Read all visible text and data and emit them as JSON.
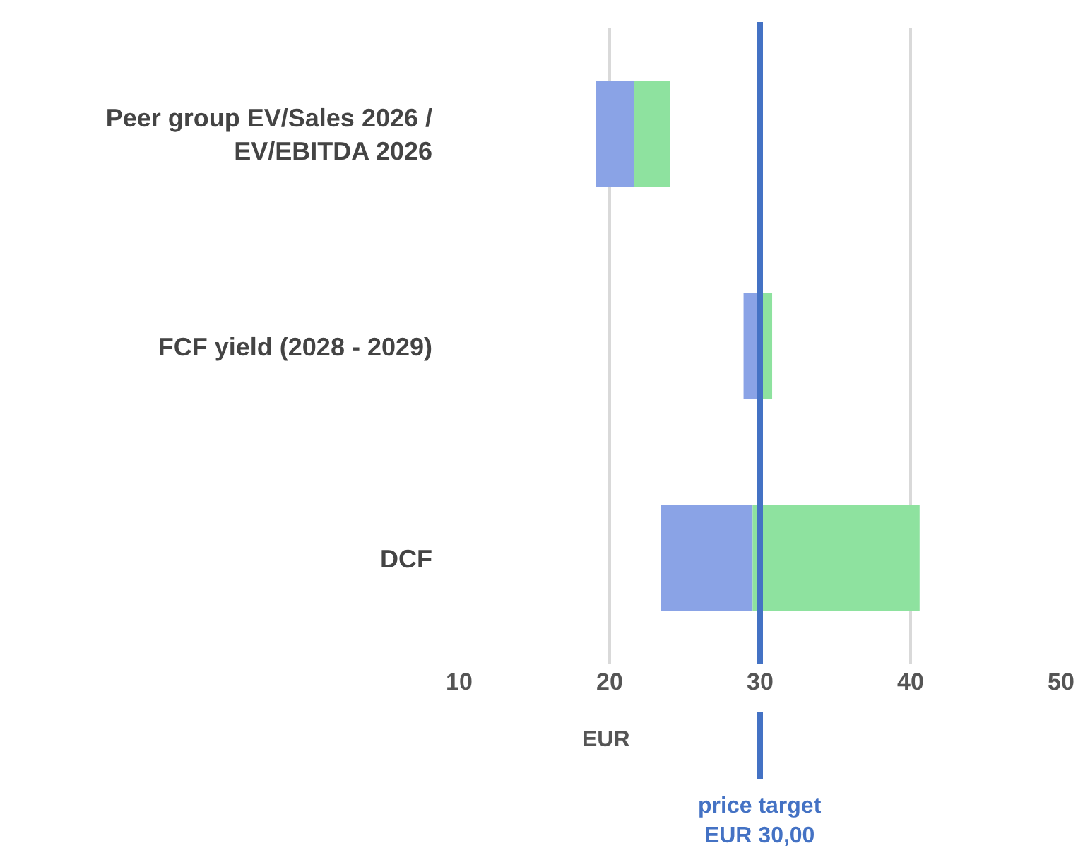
{
  "chart_data": {
    "type": "bar",
    "orientation": "horizontal",
    "categories": [
      "Peer group EV/Sales 2026 /\nEV/EBITDA 2026",
      "FCF yield (2028 - 2029)",
      "DCF"
    ],
    "series": [
      {
        "color": "#8aa3e6",
        "base": [
          19.1,
          28.9,
          23.4
        ],
        "values": [
          2.5,
          1.1,
          6.1
        ]
      },
      {
        "color": "#8ee29f",
        "base": [
          21.6,
          30.0,
          29.5
        ],
        "values": [
          2.4,
          0.8,
          11.1
        ]
      }
    ],
    "xlabel": "EUR",
    "xlim": [
      10,
      50
    ],
    "xticks": [
      10,
      20,
      30,
      40,
      50
    ],
    "grid": "x",
    "tick_labels": "xy",
    "ref_lines": [
      {
        "axis": "x",
        "value": 30,
        "label": "price target\nEUR 30,00",
        "color": "#4472c4"
      }
    ]
  }
}
